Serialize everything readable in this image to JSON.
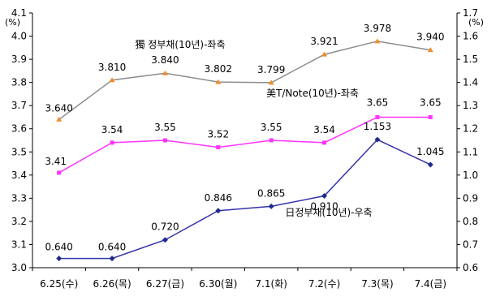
{
  "chart_data": {
    "type": "line",
    "categories": [
      "6.25(수)",
      "6.26(목)",
      "6.27(금)",
      "6.30(월)",
      "7.1(화)",
      "7.2(수)",
      "7.3(목)",
      "7.4(금)"
    ],
    "left_axis": {
      "unit_label": "(%)",
      "ylim": [
        3.0,
        4.1
      ],
      "ticks": [
        "3.0",
        "3.1",
        "3.2",
        "3.3",
        "3.4",
        "3.5",
        "3.6",
        "3.7",
        "3.8",
        "3.9",
        "4.0",
        "4.1"
      ]
    },
    "right_axis": {
      "unit_label": "(%)",
      "ylim": [
        0.6,
        1.7
      ],
      "ticks": [
        "0.6",
        "0.7",
        "0.8",
        "0.9",
        "1.0",
        "1.1",
        "1.2",
        "1.3",
        "1.4",
        "1.5",
        "1.6",
        "1.7"
      ]
    },
    "grid": false,
    "series": [
      {
        "name": "獨 정부채(10년)-좌축",
        "axis": "left",
        "color": "#8c8c8c",
        "marker_color": "#f28c28",
        "marker": "triangle",
        "values": [
          3.64,
          3.81,
          3.84,
          3.802,
          3.799,
          3.921,
          3.978,
          3.94
        ],
        "labels": [
          "3.640",
          "3.810",
          "3.840",
          "3.802",
          "3.799",
          "3.921",
          "3.978",
          "3.940"
        ]
      },
      {
        "name": "美T/Note(10년)-좌축",
        "axis": "left",
        "color": "#ff33ff",
        "marker_color": "#ff33ff",
        "marker": "square",
        "values": [
          3.41,
          3.54,
          3.55,
          3.52,
          3.55,
          3.54,
          3.65,
          3.65
        ],
        "labels": [
          "3.41",
          "3.54",
          "3.55",
          "3.52",
          "3.55",
          "3.54",
          "3.65",
          "3.65"
        ]
      },
      {
        "name": "日정부채(10년)-우축",
        "axis": "right",
        "color": "#3333aa",
        "marker_color": "#1f2a8c",
        "marker": "diamond",
        "values": [
          0.64,
          0.64,
          0.72,
          0.846,
          0.865,
          0.91,
          1.153,
          1.045
        ],
        "labels": [
          "0.640",
          "0.640",
          "0.720",
          "0.846",
          "0.865",
          "0.910",
          "1.153",
          "1.045"
        ]
      }
    ]
  }
}
